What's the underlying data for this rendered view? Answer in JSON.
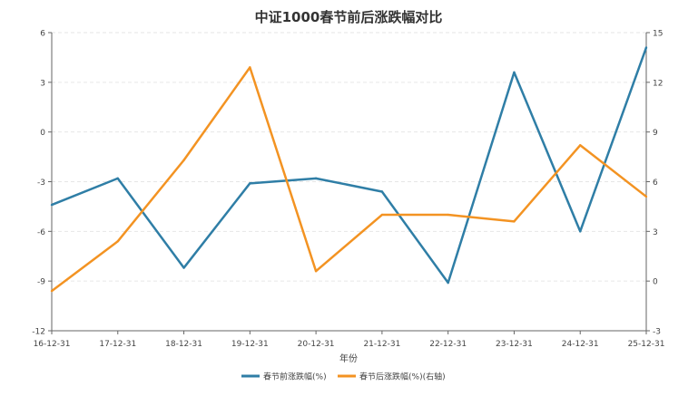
{
  "chart_data": {
    "type": "line",
    "title": "中证1000春节前后涨跌幅对比",
    "xlabel": "年份",
    "categories": [
      "16-12-31",
      "17-12-31",
      "18-12-31",
      "19-12-31",
      "20-12-31",
      "21-12-31",
      "22-12-31",
      "23-12-31",
      "24-12-31",
      "25-12-31"
    ],
    "left_axis": {
      "range": [
        -12,
        6
      ],
      "ticks": [
        "-12",
        "-9",
        "-6",
        "-3",
        "0",
        "3",
        "6"
      ]
    },
    "right_axis": {
      "range": [
        -3,
        15
      ],
      "ticks": [
        "-3",
        "0",
        "3",
        "6",
        "9",
        "12",
        "15"
      ]
    },
    "grid": true,
    "legend_position": "bottom",
    "series": [
      {
        "name": "春节前涨跌幅(%)",
        "axis": "left",
        "color": "#2f7ea6",
        "values": [
          -4.4,
          -2.8,
          -8.2,
          -3.1,
          -2.8,
          -3.6,
          -9.1,
          3.6,
          -6.0,
          5.1
        ]
      },
      {
        "name": "春节后涨跌幅(%)(右轴)",
        "axis": "right",
        "color": "#f39322",
        "values": [
          -0.6,
          2.4,
          7.3,
          12.9,
          0.6,
          4.0,
          4.0,
          3.6,
          8.2,
          5.1
        ]
      }
    ]
  }
}
